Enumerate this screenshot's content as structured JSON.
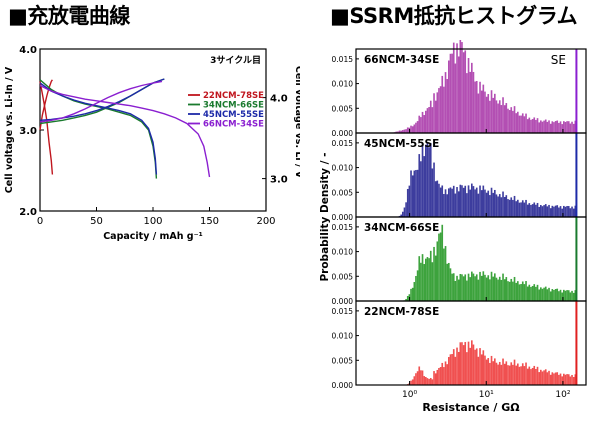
{
  "headings": {
    "left": "■充放電曲線",
    "right": "■SSRM抵抗ヒストグラム"
  },
  "chart_data": [
    {
      "type": "line",
      "xlabel": "Capacity / mAh g⁻¹",
      "ylabel": "Cell voltage vs. Li-In / V",
      "ylabel_right": "Cell voltage vs. Li / V",
      "xlim": [
        0,
        200
      ],
      "ylim": [
        2.0,
        4.0
      ],
      "xticks": [
        0,
        50,
        100,
        150,
        200
      ],
      "yticks": [
        2.0,
        3.0,
        4.0
      ],
      "yticks_right": [
        3.0,
        4.0
      ],
      "yticks_right_pos": [
        2.4,
        3.4
      ],
      "annotation": "3サイクル目",
      "legend_position": "right",
      "series": [
        {
          "name": "22NCM-78SE",
          "color": "#c0161e",
          "charge": [
            [
              0,
              3.0
            ],
            [
              2,
              3.18
            ],
            [
              4,
              3.3
            ],
            [
              6,
              3.42
            ],
            [
              8,
              3.52
            ],
            [
              10,
              3.6
            ],
            [
              11,
              3.62
            ]
          ],
          "discharge": [
            [
              0,
              3.6
            ],
            [
              2,
              3.45
            ],
            [
              4,
              3.3
            ],
            [
              6,
              3.12
            ],
            [
              8,
              2.85
            ],
            [
              10,
              2.62
            ],
            [
              11,
              2.45
            ]
          ]
        },
        {
          "name": "34NCM-66SE",
          "color": "#1a7a2e",
          "charge": [
            [
              0,
              3.08
            ],
            [
              10,
              3.1
            ],
            [
              20,
              3.12
            ],
            [
              30,
              3.15
            ],
            [
              40,
              3.18
            ],
            [
              50,
              3.22
            ],
            [
              60,
              3.28
            ],
            [
              70,
              3.34
            ],
            [
              80,
              3.42
            ],
            [
              90,
              3.5
            ],
            [
              100,
              3.58
            ],
            [
              110,
              3.63
            ]
          ],
          "discharge": [
            [
              0,
              3.62
            ],
            [
              10,
              3.5
            ],
            [
              20,
              3.42
            ],
            [
              30,
              3.36
            ],
            [
              40,
              3.32
            ],
            [
              50,
              3.29
            ],
            [
              60,
              3.26
            ],
            [
              70,
              3.22
            ],
            [
              80,
              3.18
            ],
            [
              90,
              3.1
            ],
            [
              96,
              3.0
            ],
            [
              100,
              2.8
            ],
            [
              102,
              2.6
            ],
            [
              103,
              2.4
            ]
          ]
        },
        {
          "name": "45NCM-55SE",
          "color": "#1d2aa8",
          "charge": [
            [
              0,
              3.12
            ],
            [
              10,
              3.13
            ],
            [
              20,
              3.15
            ],
            [
              30,
              3.17
            ],
            [
              40,
              3.2
            ],
            [
              50,
              3.24
            ],
            [
              60,
              3.29
            ],
            [
              70,
              3.35
            ],
            [
              80,
              3.42
            ],
            [
              90,
              3.5
            ],
            [
              100,
              3.58
            ],
            [
              110,
              3.63
            ]
          ],
          "discharge": [
            [
              0,
              3.58
            ],
            [
              10,
              3.48
            ],
            [
              20,
              3.42
            ],
            [
              30,
              3.37
            ],
            [
              40,
              3.33
            ],
            [
              50,
              3.3
            ],
            [
              60,
              3.27
            ],
            [
              70,
              3.24
            ],
            [
              80,
              3.2
            ],
            [
              90,
              3.12
            ],
            [
              96,
              3.02
            ],
            [
              100,
              2.85
            ],
            [
              102,
              2.65
            ],
            [
              103,
              2.45
            ]
          ]
        },
        {
          "name": "66NCM-34SE",
          "color": "#8a1fd0",
          "charge": [
            [
              0,
              3.1
            ],
            [
              10,
              3.12
            ],
            [
              20,
              3.15
            ],
            [
              30,
              3.2
            ],
            [
              40,
              3.26
            ],
            [
              50,
              3.33
            ],
            [
              60,
              3.4
            ],
            [
              70,
              3.46
            ],
            [
              80,
              3.51
            ],
            [
              90,
              3.55
            ],
            [
              100,
              3.58
            ],
            [
              108,
              3.6
            ]
          ],
          "discharge": [
            [
              0,
              3.55
            ],
            [
              10,
              3.48
            ],
            [
              20,
              3.44
            ],
            [
              30,
              3.41
            ],
            [
              40,
              3.38
            ],
            [
              50,
              3.36
            ],
            [
              60,
              3.34
            ],
            [
              70,
              3.32
            ],
            [
              80,
              3.3
            ],
            [
              90,
              3.27
            ],
            [
              100,
              3.24
            ],
            [
              110,
              3.2
            ],
            [
              120,
              3.15
            ],
            [
              130,
              3.08
            ],
            [
              140,
              2.95
            ],
            [
              145,
              2.8
            ],
            [
              148,
              2.6
            ],
            [
              150,
              2.42
            ]
          ]
        }
      ]
    },
    {
      "type": "bar",
      "subtype": "histogram",
      "ylabel": "Probability Density / -",
      "xlabel": "Resistance / GΩ",
      "xscale": "log",
      "xlim": [
        0.2,
        200
      ],
      "xtick_labels": [
        "10⁰",
        "10¹",
        "10²"
      ],
      "xtick_values": [
        1,
        10,
        100
      ],
      "ylim": [
        0,
        0.017
      ],
      "yticks": [
        0.0,
        0.005,
        0.01,
        0.015
      ],
      "ytick_labels": [
        "0.000",
        "0.005",
        "0.010",
        "0.015"
      ],
      "se_label": "SE",
      "se_position": 150,
      "panels": [
        {
          "name": "66NCM-34SE",
          "color": "#b34fb3",
          "edge": "#8a1fd0",
          "peaks": [
            {
              "mu": 0.62,
              "sigma": 0.15,
              "amp": 0.012
            },
            {
              "mu": 0.95,
              "sigma": 0.32,
              "amp": 0.0055
            },
            {
              "mu": 0.25,
              "sigma": 0.12,
              "amp": 0.0035
            }
          ],
          "start": -0.25,
          "tail": 0.0022
        },
        {
          "name": "45NCM-55SE",
          "color": "#3d3d9e",
          "edge": "#1d2aa8",
          "peaks": [
            {
              "mu": 0.22,
              "sigma": 0.08,
              "amp": 0.0125
            },
            {
              "mu": 0.02,
              "sigma": 0.07,
              "amp": 0.0075
            },
            {
              "mu": 0.75,
              "sigma": 0.45,
              "amp": 0.004
            }
          ],
          "start": -0.15,
          "tail": 0.002
        },
        {
          "name": "34NCM-66SE",
          "color": "#3da33d",
          "edge": "#1a7a2e",
          "peaks": [
            {
              "mu": 0.42,
              "sigma": 0.06,
              "amp": 0.0075
            },
            {
              "mu": 0.2,
              "sigma": 0.14,
              "amp": 0.007
            },
            {
              "mu": 0.9,
              "sigma": 0.5,
              "amp": 0.0035
            }
          ],
          "start": -0.08,
          "tail": 0.0018
        },
        {
          "name": "22NCM-78SE",
          "color": "#f05050",
          "edge": "#e02020",
          "peaks": [
            {
              "mu": 0.72,
              "sigma": 0.2,
              "amp": 0.0058
            },
            {
              "mu": 0.1,
              "sigma": 0.07,
              "amp": 0.0032
            },
            {
              "mu": 1.3,
              "sigma": 0.35,
              "amp": 0.0025
            }
          ],
          "start": -0.05,
          "tail": 0.0018
        }
      ]
    }
  ]
}
